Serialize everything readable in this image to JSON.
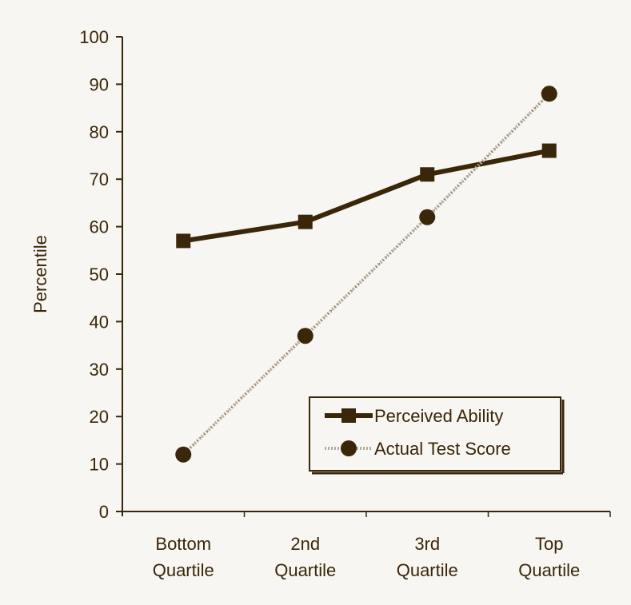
{
  "chart_data": {
    "type": "line",
    "title": "",
    "xlabel": "",
    "ylabel": "Percentile",
    "ylim": [
      0,
      100
    ],
    "yticks": [
      0,
      10,
      20,
      30,
      40,
      50,
      60,
      70,
      80,
      90,
      100
    ],
    "grid": false,
    "legend_position": "lower right (inside plot)",
    "categories": [
      "Bottom Quartile",
      "2nd Quartile",
      "3rd Quartile",
      "Top Quartile"
    ],
    "category_lines": [
      [
        "Bottom",
        "Quartile"
      ],
      [
        "2nd",
        "Quartile"
      ],
      [
        "3rd",
        "Quartile"
      ],
      [
        "Top",
        "Quartile"
      ]
    ],
    "series": [
      {
        "name": "Perceived Ability",
        "marker": "square",
        "line": "solid",
        "color": "#3a2608",
        "values": [
          57,
          61,
          71,
          76
        ]
      },
      {
        "name": "Actual Test Score",
        "marker": "circle",
        "line": "dotted-gray",
        "color": "#3a2608",
        "values": [
          12,
          37,
          62,
          88
        ]
      }
    ]
  },
  "colors": {
    "background": "#f7f6f3",
    "ink": "#3a2608",
    "dotted_line": "#b5aa9a"
  }
}
